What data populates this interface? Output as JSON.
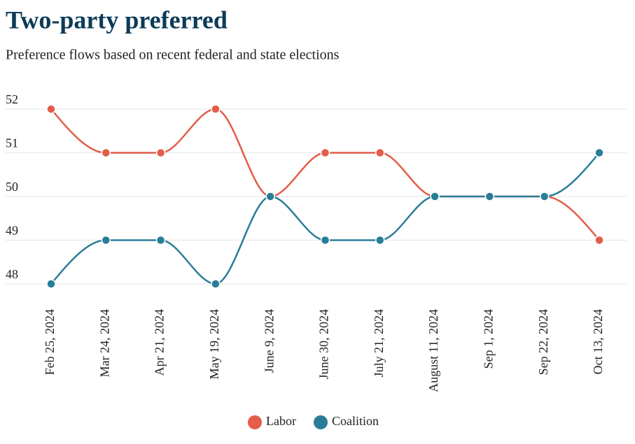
{
  "chart_data": {
    "type": "line",
    "title": "Two-party preferred",
    "subtitle": "Preference flows based on recent federal and state elections",
    "categories": [
      "Feb 25, 2024",
      "Mar 24, 2024",
      "Apr 21, 2024",
      "May 19, 2024",
      "June 9, 2024",
      "June 30, 2024",
      "July 21, 2024",
      "August 11, 2024",
      "Sep 1, 2024",
      "Sep 22, 2024",
      "Oct 13, 2024"
    ],
    "series": [
      {
        "name": "Labor",
        "color": "#e35d48",
        "values": [
          52,
          51,
          51,
          52,
          50,
          51,
          51,
          50,
          50,
          50,
          49
        ]
      },
      {
        "name": "Coalition",
        "color": "#2a7d99",
        "values": [
          48,
          49,
          49,
          48,
          50,
          49,
          49,
          50,
          50,
          50,
          51
        ]
      }
    ],
    "ylim": [
      48,
      52
    ],
    "yticks": [
      48,
      49,
      50,
      51,
      52
    ],
    "grid": true,
    "legend": "bottom"
  }
}
